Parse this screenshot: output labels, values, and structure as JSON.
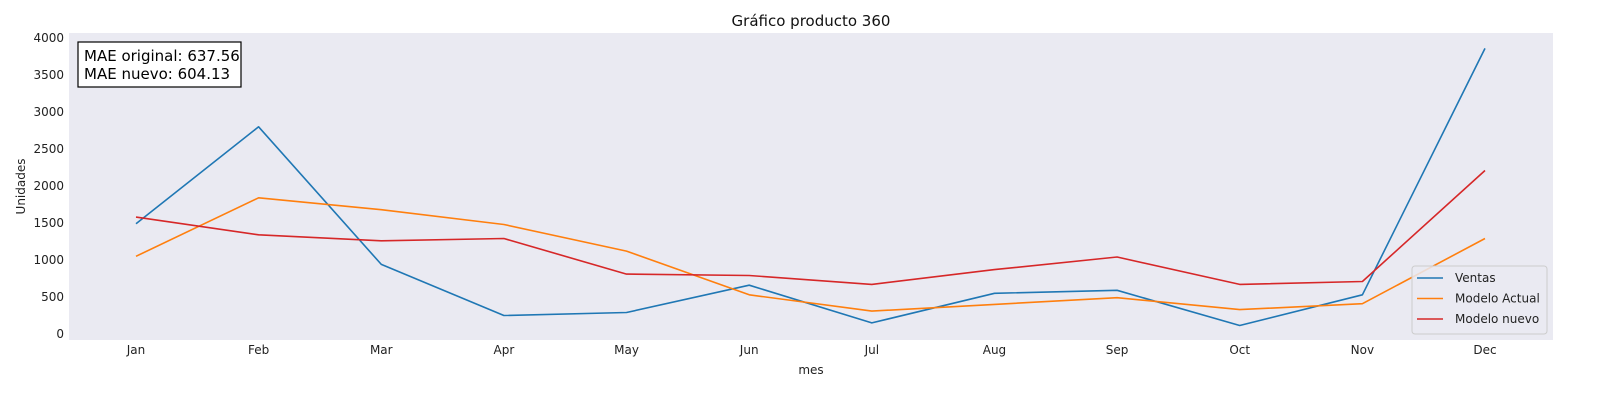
{
  "chart_data": {
    "type": "line",
    "title": "Gráfico producto 360",
    "xlabel": "mes",
    "ylabel": "Unidades",
    "categories": [
      "Jan",
      "Feb",
      "Mar",
      "Apr",
      "May",
      "Jun",
      "Jul",
      "Aug",
      "Sep",
      "Oct",
      "Nov",
      "Dec"
    ],
    "ylim": [
      0,
      4000
    ],
    "yticks": [
      0,
      500,
      1000,
      1500,
      2000,
      2500,
      3000,
      3500,
      4000
    ],
    "grid": false,
    "legend_position": "bottom-right",
    "background": "#eaeaf2",
    "series": [
      {
        "name": "Ventas",
        "color": "#1f77b4",
        "values": [
          1490,
          2800,
          940,
          250,
          290,
          660,
          150,
          550,
          590,
          115,
          530,
          3860
        ]
      },
      {
        "name": "Modelo Actual",
        "color": "#ff7f0e",
        "values": [
          1050,
          1840,
          1680,
          1480,
          1120,
          530,
          310,
          400,
          490,
          330,
          410,
          1290
        ]
      },
      {
        "name": "Modelo nuevo",
        "color": "#d62728",
        "values": [
          1580,
          1340,
          1260,
          1290,
          810,
          790,
          670,
          870,
          1040,
          670,
          710,
          2210
        ]
      }
    ],
    "annotations": [
      "MAE original: 637.56",
      "MAE nuevo: 604.13"
    ]
  }
}
